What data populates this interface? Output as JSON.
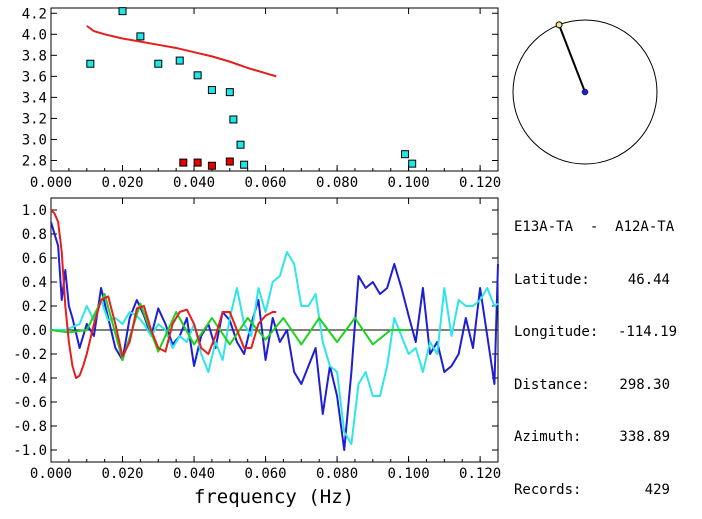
{
  "station": {
    "pair": "E13A-TA  -  A12A-TA",
    "rows": [
      {
        "label": "Latitude:",
        "value": "46.44"
      },
      {
        "label": "Longitude:",
        "value": "-114.19"
      },
      {
        "label": "Distance:",
        "value": "298.30"
      },
      {
        "label": "Azimuth:",
        "value": "338.89"
      },
      {
        "label": "Records:",
        "value": "429"
      }
    ],
    "azimuth_deg": 338.89
  },
  "chart_data": [
    {
      "type": "scatter",
      "title": "",
      "xlabel": "",
      "ylabel": "",
      "xlim": [
        0.0,
        0.125
      ],
      "ylim": [
        2.7,
        4.25
      ],
      "x_ticks": [
        "0.000",
        "0.020",
        "0.040",
        "0.060",
        "0.080",
        "0.100",
        "0.120"
      ],
      "y_ticks": [
        "2.8",
        "3.0",
        "3.2",
        "3.4",
        "3.6",
        "3.8",
        "4.0",
        "4.2"
      ],
      "series": [
        {
          "color": "#1ee6e6",
          "marker": "square",
          "points": [
            [
              0.011,
              3.72
            ],
            [
              0.02,
              4.22
            ],
            [
              0.025,
              3.98
            ],
            [
              0.03,
              3.72
            ],
            [
              0.036,
              3.75
            ],
            [
              0.041,
              3.61
            ],
            [
              0.045,
              3.47
            ],
            [
              0.05,
              3.45
            ],
            [
              0.051,
              3.19
            ],
            [
              0.053,
              2.95
            ],
            [
              0.054,
              2.76
            ],
            [
              0.099,
              2.86
            ],
            [
              0.101,
              2.77
            ]
          ]
        },
        {
          "color": "#e60000",
          "marker": "square",
          "points": [
            [
              0.037,
              2.78
            ],
            [
              0.041,
              2.78
            ],
            [
              0.045,
              2.75
            ],
            [
              0.05,
              2.79
            ]
          ]
        },
        {
          "color": "#e61e1e",
          "marker": "line",
          "x": [
            0.01,
            0.012,
            0.015,
            0.02,
            0.025,
            0.03,
            0.035,
            0.04,
            0.045,
            0.05,
            0.055,
            0.06,
            0.063
          ],
          "y": [
            4.08,
            4.03,
            4.0,
            3.96,
            3.93,
            3.9,
            3.87,
            3.83,
            3.79,
            3.74,
            3.68,
            3.63,
            3.6
          ]
        }
      ]
    },
    {
      "type": "line",
      "title": "",
      "xlabel": "frequency (Hz)",
      "ylabel": "",
      "xlim": [
        0.0,
        0.125
      ],
      "ylim": [
        -1.1,
        1.1
      ],
      "x_ticks": [
        "0.000",
        "0.020",
        "0.040",
        "0.060",
        "0.080",
        "0.100",
        "0.120"
      ],
      "y_ticks": [
        "1.0",
        "0.8",
        "0.6",
        "0.4",
        "0.2",
        "0.0",
        "-0.2",
        "-0.4",
        "-0.6",
        "-0.8",
        "-1.0"
      ],
      "series": [
        {
          "color": "#1e1ed2",
          "x": [
            0.0,
            0.002,
            0.003,
            0.004,
            0.005,
            0.006,
            0.008,
            0.01,
            0.012,
            0.014,
            0.016,
            0.018,
            0.02,
            0.022,
            0.024,
            0.026,
            0.028,
            0.03,
            0.032,
            0.034,
            0.036,
            0.038,
            0.04,
            0.042,
            0.044,
            0.046,
            0.048,
            0.05,
            0.052,
            0.054,
            0.056,
            0.058,
            0.06,
            0.062,
            0.064,
            0.066,
            0.068,
            0.07,
            0.072,
            0.074,
            0.076,
            0.078,
            0.08,
            0.082,
            0.084,
            0.086,
            0.088,
            0.09,
            0.092,
            0.094,
            0.096,
            0.098,
            0.1,
            0.102,
            0.104,
            0.106,
            0.108,
            0.11,
            0.112,
            0.114,
            0.116,
            0.118,
            0.12,
            0.122,
            0.124,
            0.125
          ],
          "y": [
            0.9,
            0.7,
            0.25,
            0.5,
            0.2,
            0.1,
            -0.15,
            0.05,
            -0.05,
            0.35,
            0.1,
            -0.15,
            -0.25,
            0.1,
            0.25,
            0.12,
            -0.05,
            0.18,
            0.05,
            -0.12,
            -0.05,
            0.1,
            -0.3,
            -0.05,
            0.05,
            -0.15,
            0.15,
            0.08,
            -0.1,
            -0.2,
            0.05,
            0.25,
            -0.25,
            0.1,
            -0.1,
            0.0,
            -0.35,
            -0.45,
            -0.3,
            -0.15,
            -0.7,
            -0.3,
            -0.55,
            -1.0,
            -0.35,
            0.45,
            0.35,
            0.4,
            0.3,
            0.35,
            0.55,
            0.35,
            0.12,
            -0.1,
            0.35,
            -0.2,
            -0.1,
            -0.35,
            -0.3,
            -0.2,
            0.1,
            -0.15,
            0.35,
            -0.05,
            -0.45,
            0.55
          ]
        },
        {
          "color": "#2ee6e6",
          "x": [
            0.0,
            0.004,
            0.008,
            0.01,
            0.012,
            0.014,
            0.016,
            0.018,
            0.02,
            0.022,
            0.024,
            0.026,
            0.028,
            0.03,
            0.032,
            0.034,
            0.036,
            0.038,
            0.04,
            0.042,
            0.044,
            0.046,
            0.048,
            0.05,
            0.052,
            0.054,
            0.056,
            0.058,
            0.06,
            0.062,
            0.064,
            0.066,
            0.068,
            0.07,
            0.072,
            0.074,
            0.076,
            0.078,
            0.08,
            0.082,
            0.084,
            0.086,
            0.088,
            0.09,
            0.092,
            0.094,
            0.096,
            0.098,
            0.1,
            0.102,
            0.104,
            0.106,
            0.108,
            0.11,
            0.112,
            0.114,
            0.116,
            0.118,
            0.12,
            0.122,
            0.124,
            0.125
          ],
          "y": [
            0.0,
            0.0,
            0.05,
            0.2,
            0.08,
            0.25,
            0.08,
            0.1,
            0.05,
            0.15,
            0.12,
            0.05,
            -0.05,
            0.05,
            0.0,
            -0.15,
            -0.05,
            -0.1,
            0.05,
            -0.2,
            -0.35,
            -0.1,
            -0.25,
            0.1,
            0.35,
            0.05,
            -0.05,
            0.35,
            0.15,
            0.4,
            0.45,
            0.65,
            0.55,
            0.2,
            0.2,
            0.3,
            -0.1,
            -0.3,
            -0.35,
            -0.85,
            -0.95,
            -0.45,
            -0.35,
            -0.55,
            -0.55,
            -0.3,
            0.1,
            -0.05,
            -0.2,
            -0.15,
            -0.35,
            -0.1,
            -0.2,
            0.35,
            -0.05,
            0.25,
            0.2,
            0.2,
            0.25,
            0.35,
            0.2,
            0.22
          ]
        },
        {
          "color": "#1ed21e",
          "x": [
            0.0,
            0.005,
            0.01,
            0.015,
            0.02,
            0.025,
            0.03,
            0.035,
            0.04,
            0.045,
            0.05,
            0.055,
            0.06,
            0.065,
            0.07,
            0.075,
            0.08,
            0.085,
            0.09,
            0.095,
            0.1
          ],
          "y": [
            0.0,
            -0.02,
            0.0,
            0.3,
            -0.25,
            0.22,
            -0.18,
            0.15,
            -0.12,
            0.1,
            -0.12,
            0.1,
            -0.08,
            0.1,
            -0.12,
            0.1,
            -0.1,
            0.1,
            -0.12,
            0.0,
            0.0
          ]
        },
        {
          "color": "#e61e1e",
          "x": [
            0.0,
            0.001,
            0.002,
            0.003,
            0.004,
            0.005,
            0.006,
            0.007,
            0.008,
            0.009,
            0.01,
            0.012,
            0.014,
            0.016,
            0.018,
            0.02,
            0.022,
            0.024,
            0.026,
            0.028,
            0.03,
            0.032,
            0.034,
            0.036,
            0.038,
            0.04,
            0.042,
            0.044,
            0.046,
            0.048,
            0.05,
            0.052,
            0.054,
            0.056,
            0.058,
            0.06,
            0.062,
            0.063
          ],
          "y": [
            1.0,
            0.97,
            0.9,
            0.65,
            0.2,
            -0.1,
            -0.3,
            -0.4,
            -0.38,
            -0.3,
            -0.2,
            0.05,
            0.25,
            0.28,
            0.05,
            -0.22,
            -0.1,
            0.18,
            0.2,
            0.0,
            -0.15,
            -0.18,
            0.05,
            0.15,
            0.17,
            0.05,
            -0.15,
            -0.2,
            -0.05,
            0.15,
            0.15,
            0.0,
            -0.15,
            -0.15,
            0.05,
            0.12,
            0.15,
            0.15
          ]
        }
      ]
    }
  ]
}
